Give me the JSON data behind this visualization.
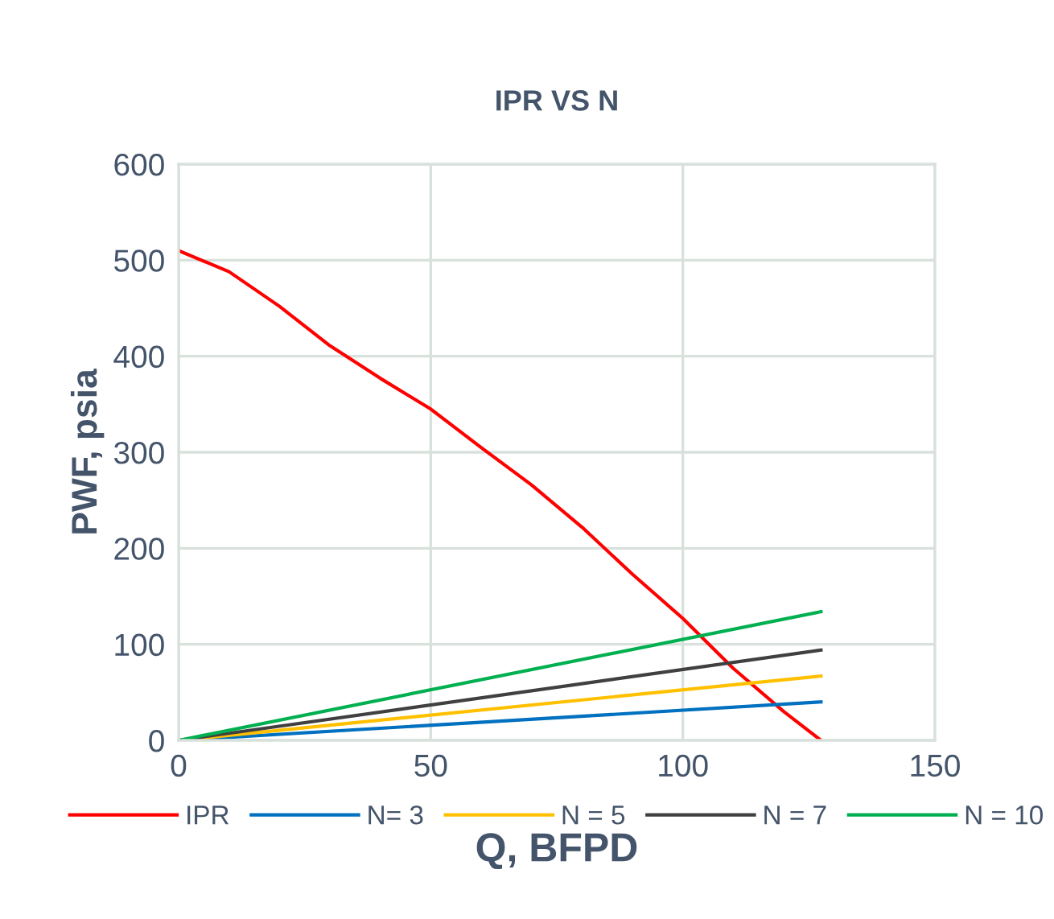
{
  "chart_data": {
    "type": "line",
    "title": "IPR VS N",
    "xlabel": "Q, BFPD",
    "ylabel": "PWF, psia",
    "xlim": [
      0,
      150
    ],
    "xticks": [
      0,
      50,
      100,
      150
    ],
    "ylim": [
      0,
      600
    ],
    "yticks": [
      0,
      100,
      200,
      300,
      400,
      500,
      600
    ],
    "grid": true,
    "legend": "bottom",
    "marker": "none",
    "line_style": "solid",
    "series": [
      {
        "name": "IPR",
        "color": "#ff0000",
        "x": [
          0,
          10,
          20,
          30,
          40,
          50,
          60,
          70,
          80,
          90,
          100,
          110,
          120,
          127.4
        ],
        "values": [
          510,
          488,
          452,
          411,
          377,
          345,
          305,
          266,
          222,
          173,
          127,
          75,
          30,
          0
        ]
      },
      {
        "name": "N= 3",
        "color": "#0070c0",
        "x": [
          0,
          127.4
        ],
        "values": [
          0,
          40
        ]
      },
      {
        "name": "N = 5",
        "color": "#ffc000",
        "x": [
          0,
          127.4
        ],
        "values": [
          0,
          67
        ]
      },
      {
        "name": "N = 7",
        "color": "#404040",
        "x": [
          0,
          127.4
        ],
        "values": [
          0,
          94
        ]
      },
      {
        "name": "N = 10",
        "color": "#00b050",
        "x": [
          0,
          127.4
        ],
        "values": [
          0,
          134
        ]
      }
    ]
  }
}
